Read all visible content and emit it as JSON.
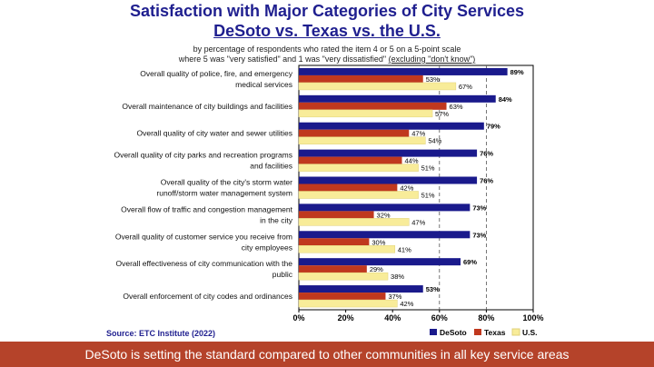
{
  "header": {
    "title": "Satisfaction with Major Categories of City Services",
    "subtitle": "DeSoto vs. Texas vs. the U.S.",
    "note_line1": "by percentage of respondents who rated the item 4 or 5 on a 5-point scale",
    "note_line2_main": "where 5 was \"very satisfied\" and 1 was \"very dissatisfied\" ",
    "note_line2_underlined": "(excluding \"don't know\")"
  },
  "source": "Source: ETC Institute (2022)",
  "banner": "DeSoto is setting the standard compared to other communities in all key service areas",
  "colors": {
    "desoto": "#1a1a8c",
    "texas": "#c0381e",
    "us": "#f8ec99"
  },
  "chart_data": {
    "type": "bar",
    "orientation": "horizontal",
    "categories": [
      [
        "Overall quality of police, fire, and emergency",
        "medical services"
      ],
      [
        "Overall maintenance of city buildings and facilities"
      ],
      [
        "Overall quality of city water and sewer utilities"
      ],
      [
        "Overall quality of city parks and recreation programs",
        "and facilities"
      ],
      [
        "Overall quality of the city's storm water",
        "runoff/storm water management system"
      ],
      [
        "Overall flow of traffic and congestion management",
        "in the city"
      ],
      [
        "Overall quality of customer service you receive from",
        "city employees"
      ],
      [
        "Overall effectiveness of city communication with the",
        "public"
      ],
      [
        "Overall enforcement of city codes and ordinances"
      ]
    ],
    "series": [
      {
        "name": "DeSoto",
        "values": [
          89,
          84,
          79,
          76,
          76,
          73,
          73,
          69,
          53
        ]
      },
      {
        "name": "Texas",
        "values": [
          53,
          63,
          47,
          44,
          42,
          32,
          30,
          29,
          37
        ]
      },
      {
        "name": "U.S.",
        "values": [
          67,
          57,
          54,
          51,
          51,
          47,
          41,
          38,
          42
        ]
      }
    ],
    "xlim": [
      0,
      100
    ],
    "xticks": [
      "0%",
      "20%",
      "40%",
      "60%",
      "80%",
      "100%"
    ],
    "grid": "dashed vertical lines at 60% and 80%",
    "legend_placement": "bottom-right"
  }
}
